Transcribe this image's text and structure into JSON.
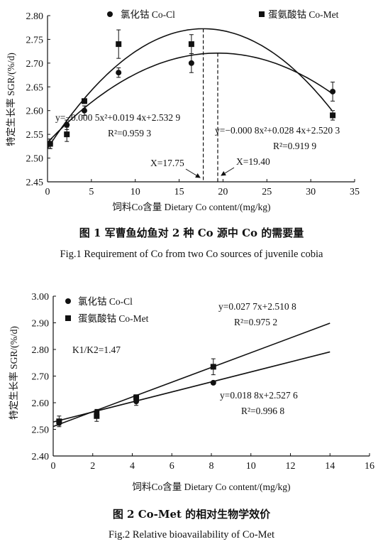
{
  "chart_data": [
    {
      "type": "scatter",
      "xlabel": "饲料Co含量 Dietary Co content/(mg/kg)",
      "ylabel": "特定生长率 SGR/(%/d)",
      "xlim": [
        0,
        35
      ],
      "ylim": [
        2.45,
        2.8
      ],
      "xticks": [
        0,
        5,
        10,
        15,
        20,
        25,
        30,
        35
      ],
      "yticks": [
        2.45,
        2.5,
        2.55,
        2.6,
        2.65,
        2.7,
        2.75,
        2.8
      ],
      "xtick_labels": [
        "0",
        "5",
        "10",
        "15",
        "20",
        "25",
        "30",
        "35"
      ],
      "ytick_labels": [
        "2.45",
        "2.50",
        "2.55",
        "2.60",
        "2.65",
        "2.70",
        "2.75",
        "2.80"
      ],
      "legend": {
        "placement": "top",
        "entries": [
          "氯化钴 Co-Cl",
          "蛋氨酸钴 Co-Met"
        ]
      },
      "series": [
        {
          "name": "氯化钴 Co-Cl",
          "marker": "circle",
          "x": [
            0.3,
            2.2,
            4.2,
            8.1,
            16.4,
            32.5
          ],
          "y": [
            2.53,
            2.57,
            2.6,
            2.68,
            2.7,
            2.64
          ],
          "err": [
            0.01,
            0.01,
            0.01,
            0.01,
            0.02,
            0.02
          ],
          "fit": {
            "a": -0.0005,
            "b": 0.0194,
            "c": 2.5329
          }
        },
        {
          "name": "蛋氨酸钴 Co-Met",
          "marker": "square",
          "x": [
            0.3,
            2.2,
            4.2,
            8.1,
            16.4,
            32.5
          ],
          "y": [
            2.53,
            2.55,
            2.62,
            2.74,
            2.74,
            2.59
          ],
          "err": [
            0.01,
            0.015,
            0.005,
            0.03,
            0.02,
            0.01
          ],
          "fit": {
            "a": -0.0008,
            "b": 0.0284,
            "c": 2.5203
          }
        }
      ],
      "vlines": [
        17.75,
        19.4
      ],
      "annotations": {
        "eq1": "y=−0.000 5x²+0.019 4x+2.532 9",
        "r1": "R²=0.959 3",
        "eq2": "y=−0.000 8x²+0.028 4x+2.520 3",
        "r2": "R²=0.919 9",
        "x1": "X=17.75",
        "x2": "X=19.40"
      }
    },
    {
      "type": "scatter",
      "xlabel": "饲料Co含量 Dietary Co content/(mg/kg)",
      "ylabel": "特定生长率 SGR/(%/d)",
      "xlim": [
        0,
        16
      ],
      "ylim": [
        2.4,
        3.0
      ],
      "xticks": [
        0,
        2,
        4,
        6,
        8,
        10,
        12,
        14,
        16
      ],
      "yticks": [
        2.4,
        2.5,
        2.6,
        2.7,
        2.8,
        2.9,
        3.0
      ],
      "xtick_labels": [
        "0",
        "2",
        "4",
        "6",
        "8",
        "10",
        "12",
        "14",
        "16"
      ],
      "ytick_labels": [
        "2.40",
        "2.50",
        "2.60",
        "2.70",
        "2.80",
        "2.90",
        "3.00"
      ],
      "legend": {
        "placement": "top-left",
        "entries": [
          "氯化钴 Co-Cl",
          "蛋氨酸钴 Co-Met"
        ]
      },
      "series": [
        {
          "name": "氯化钴 Co-Cl",
          "marker": "circle",
          "x": [
            0.3,
            2.2,
            4.2,
            8.1
          ],
          "y": [
            2.525,
            2.565,
            2.605,
            2.675
          ],
          "err": [
            0.01,
            0.01,
            0.015,
            0.005
          ],
          "fit": {
            "slope": 0.0188,
            "intercept": 2.5276
          }
        },
        {
          "name": "蛋氨酸钴 Co-Met",
          "marker": "square",
          "x": [
            0.3,
            2.2,
            4.2,
            8.1
          ],
          "y": [
            2.53,
            2.55,
            2.62,
            2.735
          ],
          "err": [
            0.02,
            0.02,
            0.01,
            0.03
          ],
          "fit": {
            "slope": 0.0277,
            "intercept": 2.5108
          }
        }
      ],
      "annotations": {
        "eqMet": "y=0.027 7x+2.510 8",
        "rMet": "R²=0.975 2",
        "eqCl": "y=0.018 8x+2.527 6",
        "rCl": "R²=0.996 8",
        "k": "K1/K2=1.47"
      }
    }
  ],
  "captions": {
    "fig1_cn": "图 1 军曹鱼幼鱼对 2 种 Co 源中 Co 的需要量",
    "fig1_en": "Fig.1 Requirement of Co from two Co sources of juvenile cobia",
    "fig2_cn": "图 2 Co-Met 的相对生物学效价",
    "fig2_en": "Fig.2 Relative bioavailability of Co-Met"
  }
}
